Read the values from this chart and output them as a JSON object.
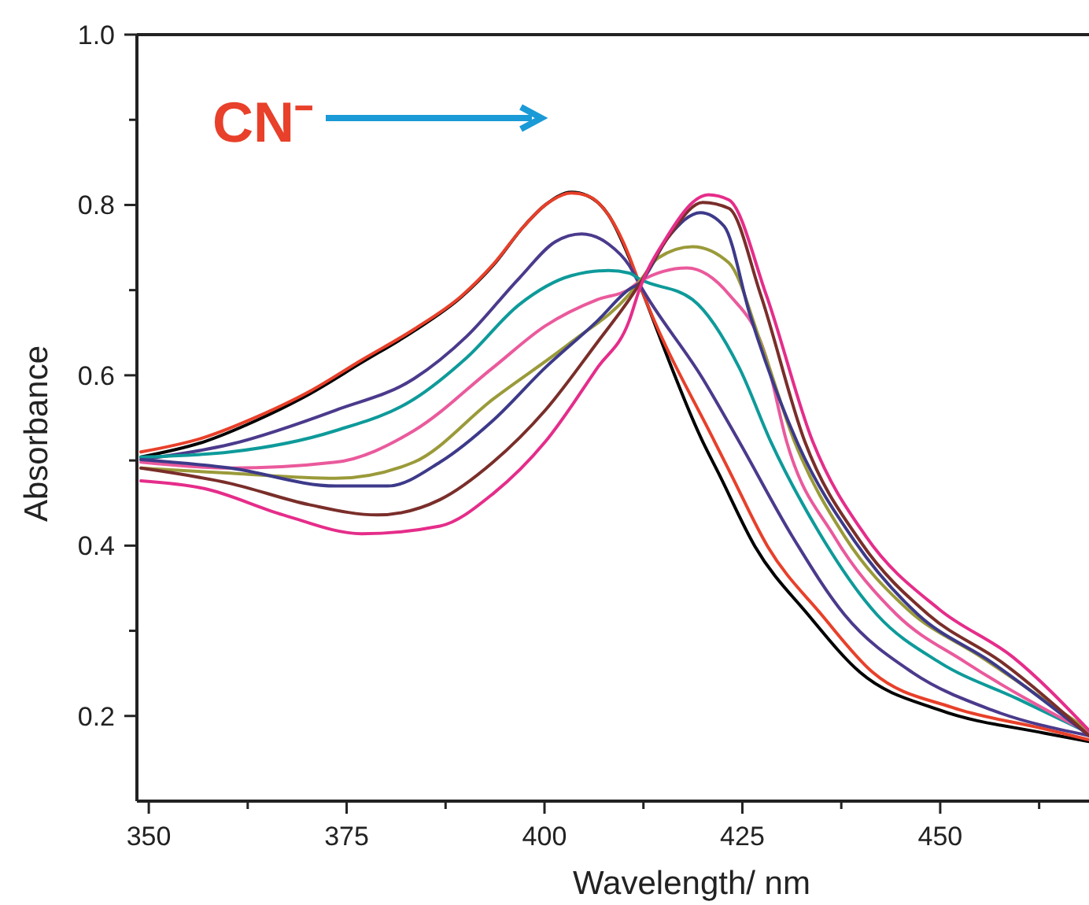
{
  "chart_data": {
    "type": "line",
    "xlabel": "Wavelength/ nm",
    "ylabel": "Absorbance",
    "xlim": [
      348.5,
      468.8
    ],
    "ylim": [
      0.1,
      1.0
    ],
    "xticks": [
      350,
      {
        "value": 362.5,
        "label": null
      },
      375,
      {
        "value": 387.5,
        "label": null
      },
      400,
      {
        "value": 412.5,
        "label": null
      },
      425,
      {
        "value": 437.5,
        "label": null
      },
      450,
      {
        "value": 462.5,
        "label": null
      }
    ],
    "yticks": [
      0.2,
      {
        "value": 0.3,
        "label": null
      },
      0.4,
      {
        "value": 0.5,
        "label": null
      },
      0.6,
      {
        "value": 0.7,
        "label": null
      },
      0.8,
      {
        "value": 0.9,
        "label": null
      },
      {
        "value": 1.0,
        "label": "1.0"
      }
    ],
    "grid": false,
    "marker": "none",
    "line_style": "solid",
    "annotations": [
      "CN⁻"
    ],
    "series": [
      {
        "color": "#000000",
        "x": [
          349,
          357,
          363.6,
          370.3,
          376.9,
          383.5,
          389.5,
          393.5,
          397.4,
          400.1,
          403.4,
          405.4,
          408.1,
          410.7,
          412,
          420,
          422,
          426.6,
          433.3,
          439.9,
          449.9,
          463.1,
          468.8
        ],
        "values": [
          0.504,
          0.522,
          0.547,
          0.578,
          0.615,
          0.652,
          0.692,
          0.729,
          0.775,
          0.8,
          0.815,
          0.811,
          0.788,
          0.738,
          0.707,
          0.522,
          0.485,
          0.399,
          0.319,
          0.251,
          0.207,
          0.18,
          0.17
        ]
      },
      {
        "color": "#e8402a",
        "x": [
          349,
          357,
          363.6,
          370.3,
          376.9,
          383.5,
          389.5,
          393.5,
          397.4,
          400.1,
          403.4,
          405.4,
          408.1,
          410.7,
          412,
          421.5,
          423.5,
          428.2,
          435,
          441.5,
          451.5,
          463.1,
          468.8
        ],
        "values": [
          0.51,
          0.527,
          0.551,
          0.581,
          0.618,
          0.654,
          0.693,
          0.73,
          0.775,
          0.8,
          0.814,
          0.811,
          0.788,
          0.74,
          0.707,
          0.522,
          0.485,
          0.399,
          0.319,
          0.251,
          0.21,
          0.185,
          0.172
        ]
      },
      {
        "color": "#4b3a8c",
        "x": [
          349,
          360.3,
          373.6,
          383.5,
          390.2,
          396.8,
          401.4,
          404.7,
          408.1,
          410.7,
          412,
          420,
          424.6,
          431.3,
          437.9,
          446.5,
          456.5,
          468.8
        ],
        "values": [
          0.501,
          0.519,
          0.559,
          0.596,
          0.646,
          0.714,
          0.757,
          0.766,
          0.754,
          0.729,
          0.707,
          0.596,
          0.522,
          0.411,
          0.319,
          0.251,
          0.207,
          0.177
        ]
      },
      {
        "color": "#0e9a9a",
        "x": [
          349,
          360.3,
          373.6,
          383.5,
          390.2,
          396.8,
          403.4,
          408.1,
          410.7,
          412,
          418.7,
          424.6,
          428.6,
          434.6,
          442,
          449.9,
          459.8,
          468.8
        ],
        "values": [
          0.504,
          0.51,
          0.535,
          0.572,
          0.621,
          0.683,
          0.717,
          0.723,
          0.72,
          0.713,
          0.689,
          0.609,
          0.522,
          0.417,
          0.319,
          0.263,
          0.22,
          0.18
        ]
      },
      {
        "color": "#ea5a9c",
        "x": [
          349,
          360.3,
          373.6,
          383.5,
          393.5,
          400.1,
          406.7,
          410.7,
          412,
          418,
          423.3,
          428,
          430.6,
          436.6,
          444.5,
          453.2,
          468.8
        ],
        "values": [
          0.498,
          0.491,
          0.498,
          0.535,
          0.609,
          0.658,
          0.689,
          0.701,
          0.71,
          0.726,
          0.695,
          0.621,
          0.522,
          0.411,
          0.319,
          0.263,
          0.18
        ]
      },
      {
        "color": "#9a9a3a",
        "x": [
          349,
          360.3,
          373.6,
          383.5,
          393.5,
          403.4,
          410.7,
          412,
          414.4,
          418.7,
          423.3,
          427.3,
          431.6,
          437.9,
          445.9,
          455.2,
          468.8
        ],
        "values": [
          0.491,
          0.485,
          0.479,
          0.498,
          0.572,
          0.639,
          0.695,
          0.71,
          0.738,
          0.751,
          0.732,
          0.639,
          0.522,
          0.411,
          0.325,
          0.269,
          0.183
        ]
      },
      {
        "color": "#3d3a8a",
        "x": [
          349,
          360.3,
          373.6,
          380.2,
          386.8,
          393.5,
          400.1,
          406.7,
          410.7,
          412,
          415.7,
          419.7,
          422.7,
          426,
          431.9,
          439.2,
          447.2,
          456.5,
          468.8
        ],
        "values": [
          0.501,
          0.491,
          0.47,
          0.47,
          0.498,
          0.547,
          0.609,
          0.664,
          0.701,
          0.708,
          0.763,
          0.791,
          0.775,
          0.67,
          0.522,
          0.405,
          0.319,
          0.263,
          0.177
        ]
      },
      {
        "color": "#7a2e2a",
        "x": [
          349,
          360.3,
          370.3,
          378.9,
          386.8,
          393.5,
          400.1,
          406.7,
          410.7,
          412,
          415.7,
          420,
          423.3,
          427.3,
          432.9,
          439.9,
          448.5,
          457.8,
          468.8
        ],
        "values": [
          0.491,
          0.473,
          0.448,
          0.436,
          0.454,
          0.498,
          0.559,
          0.639,
          0.689,
          0.707,
          0.763,
          0.803,
          0.796,
          0.695,
          0.522,
          0.405,
          0.319,
          0.263,
          0.177
        ]
      },
      {
        "color": "#e52d8a",
        "x": [
          349,
          357,
          367,
          376.9,
          386.8,
          393.5,
          400.1,
          406.7,
          410.7,
          412,
          415.1,
          420.7,
          423.3,
          428,
          433.9,
          440.6,
          449.9,
          459.2,
          468.8
        ],
        "values": [
          0.476,
          0.467,
          0.436,
          0.414,
          0.423,
          0.461,
          0.522,
          0.609,
          0.664,
          0.701,
          0.757,
          0.812,
          0.806,
          0.695,
          0.522,
          0.411,
          0.325,
          0.269,
          0.183
        ]
      }
    ]
  }
}
